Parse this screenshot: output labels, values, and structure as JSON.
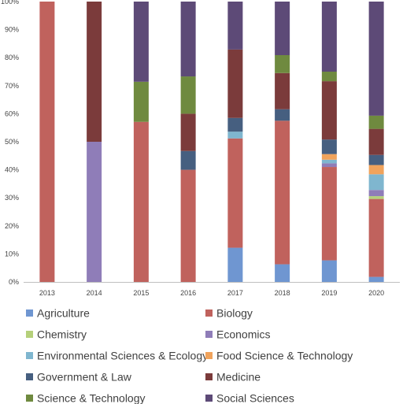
{
  "chart_data": {
    "type": "bar",
    "stacked": true,
    "percent": true,
    "categories": [
      "2013",
      "2014",
      "2015",
      "2016",
      "2017",
      "2018",
      "2019",
      "2020"
    ],
    "ylim": [
      0,
      100
    ],
    "yticks": [
      "0%",
      "10%",
      "20%",
      "30%",
      "40%",
      "50%",
      "60%",
      "70%",
      "80%",
      "90%",
      "100%"
    ],
    "grid": false,
    "legend_position": "bottom",
    "series": [
      {
        "name": "Agriculture",
        "color": "#6f96d1",
        "values": [
          0,
          0,
          0,
          0,
          12.2,
          6.3,
          7.7,
          1.8
        ]
      },
      {
        "name": "Biology",
        "color": "#c0625d",
        "values": [
          100,
          0,
          57.1,
          40,
          39.0,
          51.2,
          33.3,
          27.8
        ]
      },
      {
        "name": "Chemistry",
        "color": "#b5d07a",
        "values": [
          0,
          0,
          0,
          0,
          0,
          0,
          0,
          1.0
        ]
      },
      {
        "name": "Economics",
        "color": "#8f7db8",
        "values": [
          0,
          50,
          0,
          0,
          0,
          0,
          1.3,
          2.2
        ]
      },
      {
        "name": "Environmental Sciences & Ecology",
        "color": "#7fb6cf",
        "values": [
          0,
          0,
          0,
          0,
          2.4,
          0,
          1.3,
          5.6
        ]
      },
      {
        "name": "Food Science & Technology",
        "color": "#f0a35c",
        "values": [
          0,
          0,
          0,
          0,
          0,
          0,
          2.0,
          3.3
        ]
      },
      {
        "name": "Government & Law",
        "color": "#465f80",
        "values": [
          0,
          0,
          0,
          6.7,
          4.9,
          4.1,
          5.2,
          3.6
        ]
      },
      {
        "name": "Medicine",
        "color": "#7b3b3b",
        "values": [
          0,
          50,
          0,
          13.3,
          24.4,
          12.9,
          20.8,
          9.3
        ]
      },
      {
        "name": "Science & Technology",
        "color": "#6f8a3f",
        "values": [
          0,
          0,
          14.3,
          13.3,
          0,
          6.4,
          3.4,
          4.7
        ]
      },
      {
        "name": "Social Sciences",
        "color": "#5d4a77",
        "values": [
          0,
          0,
          28.6,
          26.7,
          17.1,
          19.1,
          25.0,
          40.7
        ]
      }
    ]
  }
}
